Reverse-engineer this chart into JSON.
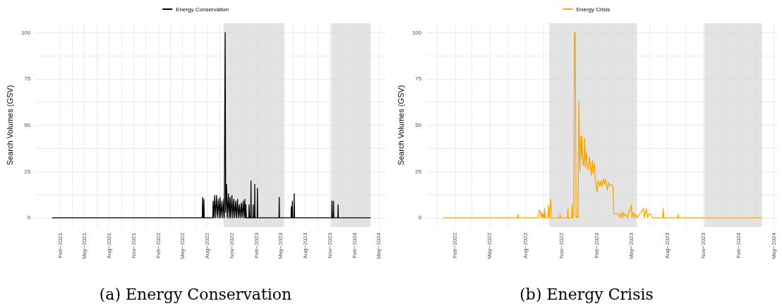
{
  "chart_data": [
    {
      "type": "line",
      "ylabel": "Search Volumes (GSV)",
      "legend": "top",
      "grid": true,
      "line_style": "solid",
      "marker": "none",
      "x": [
        "2021-01-01",
        "2022-07-14",
        "2022-07-15",
        "2022-07-17",
        "2022-07-19",
        "2022-07-20",
        "2022-07-21",
        "2022-08-22",
        "2022-08-23",
        "2022-08-26",
        "2022-08-29",
        "2022-09-01",
        "2022-09-05",
        "2022-09-08",
        "2022-09-12",
        "2022-09-15",
        "2022-09-18",
        "2022-09-21",
        "2022-09-25",
        "2022-09-28",
        "2022-10-02",
        "2022-10-04",
        "2022-10-07",
        "2022-10-09",
        "2022-10-12",
        "2022-10-15",
        "2022-10-19",
        "2022-10-22",
        "2022-10-25",
        "2022-10-28",
        "2022-11-01",
        "2022-11-04",
        "2022-11-08",
        "2022-11-11",
        "2022-11-15",
        "2022-11-18",
        "2022-11-22",
        "2022-11-25",
        "2022-11-29",
        "2022-12-02",
        "2022-12-06",
        "2022-12-09",
        "2022-12-13",
        "2022-12-16",
        "2022-12-19",
        "2022-12-21",
        "2022-12-23",
        "2022-12-25",
        "2023-01-03",
        "2023-01-04",
        "2023-01-06",
        "2023-01-10",
        "2023-01-11",
        "2023-01-12",
        "2023-01-18",
        "2023-01-19",
        "2023-01-20",
        "2023-01-24",
        "2023-01-25",
        "2023-01-26",
        "2023-02-03",
        "2023-02-04",
        "2023-02-05",
        "2023-04-25",
        "2023-04-26",
        "2023-04-27",
        "2023-06-09",
        "2023-06-10",
        "2023-06-12",
        "2023-06-14",
        "2023-06-15",
        "2023-06-20",
        "2023-06-21",
        "2023-06-22",
        "2023-11-07",
        "2023-11-08",
        "2023-11-09",
        "2023-11-13",
        "2023-11-14",
        "2023-11-15",
        "2023-11-30",
        "2023-12-01",
        "2023-12-02",
        "2024-03-31"
      ],
      "series": [
        {
          "name": "Energy Conservation",
          "color": "#000000",
          "values": [
            0,
            0,
            11,
            0,
            0,
            10,
            0,
            0,
            9,
            0,
            12,
            0,
            12,
            0,
            10,
            0,
            11,
            0,
            9,
            0,
            10,
            0,
            100,
            3,
            18,
            0,
            13,
            0,
            11,
            0,
            12,
            0,
            10,
            0,
            9,
            0,
            10,
            0,
            7,
            0,
            8,
            0,
            9,
            0,
            10,
            0,
            7,
            0,
            0,
            7,
            0,
            0,
            20,
            0,
            0,
            7,
            0,
            0,
            18,
            0,
            0,
            16,
            0,
            0,
            11,
            0,
            0,
            6,
            0,
            9,
            0,
            0,
            13,
            0,
            0,
            9,
            0,
            0,
            9,
            0,
            0,
            7,
            0,
            0
          ]
        }
      ],
      "xlim": [
        "2020-11-03",
        "2024-05-30"
      ],
      "xticks": [
        {
          "value": "2021-02-01",
          "label": "Feb−2021"
        },
        {
          "value": "2021-03-16",
          "label": null
        },
        {
          "value": "2021-05-01",
          "label": "May−2021"
        },
        {
          "value": "2021-06-16",
          "label": null
        },
        {
          "value": "2021-08-01",
          "label": "Aug−2021"
        },
        {
          "value": "2021-09-16",
          "label": null
        },
        {
          "value": "2021-11-01",
          "label": "Nov−2021"
        },
        {
          "value": "2021-12-16",
          "label": null
        },
        {
          "value": "2022-02-01",
          "label": "Feb−2022"
        },
        {
          "value": "2022-03-16",
          "label": null
        },
        {
          "value": "2022-05-01",
          "label": "May−2022"
        },
        {
          "value": "2022-06-16",
          "label": null
        },
        {
          "value": "2022-08-01",
          "label": "Aug−2022"
        },
        {
          "value": "2022-09-16",
          "label": null
        },
        {
          "value": "2022-11-01",
          "label": "Nov−2022"
        },
        {
          "value": "2022-12-16",
          "label": null
        },
        {
          "value": "2023-02-01",
          "label": "Feb−2023"
        },
        {
          "value": "2023-03-16",
          "label": null
        },
        {
          "value": "2023-05-01",
          "label": "May−2023"
        },
        {
          "value": "2023-06-16",
          "label": null
        },
        {
          "value": "2023-08-01",
          "label": "Aug−2023"
        },
        {
          "value": "2023-09-16",
          "label": null
        },
        {
          "value": "2023-11-01",
          "label": "Nov−2023"
        },
        {
          "value": "2023-12-16",
          "label": null
        },
        {
          "value": "2024-02-01",
          "label": "Feb−2024"
        },
        {
          "value": "2024-03-16",
          "label": null
        },
        {
          "value": "2024-05-01",
          "label": "May−2024"
        }
      ],
      "ylim": [
        -5,
        105
      ],
      "yticks": [
        0,
        {
          "value": 12.5,
          "label": null
        },
        25,
        {
          "value": 37.5,
          "label": null
        },
        50,
        {
          "value": 62.5,
          "label": null
        },
        75,
        {
          "value": 87.5,
          "label": null
        },
        100
      ],
      "bands": [
        {
          "axis": "x",
          "from": "2022-10-01",
          "to": "2023-05-15",
          "color": "#d9d7d8"
        },
        {
          "axis": "x",
          "from": "2023-11-05",
          "to": "2024-03-31",
          "color": "#d9d7d8"
        }
      ],
      "annotations": [
        "(a) Energy Conservation"
      ]
    },
    {
      "type": "line",
      "ylabel": "Search Volumes (GSV)",
      "legend": "top",
      "grid": true,
      "line_style": "solid",
      "marker": "none",
      "x": [
        "2022-01-01",
        "2022-07-12",
        "2022-07-13",
        "2022-07-14",
        "2022-09-03",
        "2022-09-05",
        "2022-09-07",
        "2022-09-10",
        "2022-09-12",
        "2022-09-15",
        "2022-09-16",
        "2022-09-18",
        "2022-09-19",
        "2022-09-21",
        "2022-09-28",
        "2022-09-29",
        "2022-09-30",
        "2022-10-05",
        "2022-10-06",
        "2022-10-28",
        "2022-10-29",
        "2022-10-30",
        "2022-11-17",
        "2022-11-18",
        "2022-11-19",
        "2022-11-28",
        "2022-11-29",
        "2022-11-30",
        "2022-12-01",
        "2022-12-03",
        "2022-12-05",
        "2022-12-07",
        "2022-12-09",
        "2022-12-12",
        "2022-12-14",
        "2022-12-16",
        "2022-12-19",
        "2022-12-21",
        "2022-12-23",
        "2022-12-24",
        "2022-12-27",
        "2022-12-29",
        "2022-12-31",
        "2023-01-02",
        "2023-01-05",
        "2023-01-07",
        "2023-01-10",
        "2023-01-12",
        "2023-01-15",
        "2023-01-17",
        "2023-01-20",
        "2023-01-22",
        "2023-01-25",
        "2023-01-27",
        "2023-02-01",
        "2023-02-04",
        "2023-02-08",
        "2023-02-11",
        "2023-02-14",
        "2023-02-17",
        "2023-02-20",
        "2023-02-23",
        "2023-02-27",
        "2023-03-02",
        "2023-03-05",
        "2023-03-09",
        "2023-03-14",
        "2023-03-16",
        "2023-03-19",
        "2023-03-28",
        "2023-04-01",
        "2023-04-04",
        "2023-04-07",
        "2023-04-10",
        "2023-04-13",
        "2023-04-17",
        "2023-04-20",
        "2023-04-30",
        "2023-05-02",
        "2023-05-06",
        "2023-05-09",
        "2023-05-12",
        "2023-05-15",
        "2023-06-01",
        "2023-06-03",
        "2023-06-08",
        "2023-06-11",
        "2023-06-14",
        "2023-06-19",
        "2023-06-22",
        "2023-06-24",
        "2023-07-20",
        "2023-07-21",
        "2023-07-23",
        "2023-08-28",
        "2023-08-29",
        "2023-08-30",
        "2024-03-31"
      ],
      "series": [
        {
          "name": "Energy Crisis",
          "color": "#ffa500",
          "values": [
            0,
            0,
            2,
            0,
            0,
            4,
            4,
            0,
            3,
            0,
            2,
            0,
            5,
            0,
            0,
            7,
            0,
            10,
            0,
            0,
            2,
            0,
            0,
            5,
            0,
            0,
            7,
            0,
            0,
            1,
            100,
            100,
            0,
            1,
            0,
            63,
            25,
            44,
            32,
            44,
            30,
            28,
            43,
            27,
            36,
            28,
            26,
            33,
            28,
            23,
            31,
            24,
            30,
            22,
            14,
            20,
            17,
            20,
            17,
            21,
            18,
            21,
            15,
            19,
            17,
            18,
            17,
            3,
            2,
            2,
            0,
            3,
            0,
            3,
            1,
            2,
            0,
            7,
            0,
            3,
            0,
            2,
            0,
            5,
            0,
            5,
            0,
            2,
            2,
            1,
            0,
            0,
            5,
            0,
            0,
            2,
            0,
            0
          ]
        }
      ],
      "xlim": [
        "2021-11-21",
        "2024-05-11"
      ],
      "xticks": [
        {
          "value": "2021-12-16",
          "label": null
        },
        {
          "value": "2022-02-01",
          "label": "Feb−2022"
        },
        {
          "value": "2022-03-16",
          "label": null
        },
        {
          "value": "2022-05-01",
          "label": "May−2022"
        },
        {
          "value": "2022-06-16",
          "label": null
        },
        {
          "value": "2022-08-01",
          "label": "Aug−2022"
        },
        {
          "value": "2022-09-16",
          "label": null
        },
        {
          "value": "2022-11-01",
          "label": "Nov−2022"
        },
        {
          "value": "2022-12-16",
          "label": null
        },
        {
          "value": "2023-02-01",
          "label": "Feb−2023"
        },
        {
          "value": "2023-03-16",
          "label": null
        },
        {
          "value": "2023-05-01",
          "label": "May−2023"
        },
        {
          "value": "2023-06-16",
          "label": null
        },
        {
          "value": "2023-08-01",
          "label": "Aug−2023"
        },
        {
          "value": "2023-09-16",
          "label": null
        },
        {
          "value": "2023-11-01",
          "label": "Nov−2023"
        },
        {
          "value": "2023-12-16",
          "label": null
        },
        {
          "value": "2024-02-01",
          "label": "Feb−2024"
        },
        {
          "value": "2024-03-16",
          "label": null
        },
        {
          "value": "2024-05-01",
          "label": "May−2024"
        }
      ],
      "ylim": [
        -5,
        105
      ],
      "yticks": [
        0,
        {
          "value": 12.5,
          "label": null
        },
        25,
        {
          "value": 37.5,
          "label": null
        },
        50,
        {
          "value": 62.5,
          "label": null
        },
        75,
        {
          "value": 87.5,
          "label": null
        },
        100
      ],
      "bands": [
        {
          "axis": "x",
          "from": "2022-10-01",
          "to": "2023-05-15",
          "color": "#d9d7d8"
        },
        {
          "axis": "x",
          "from": "2023-11-04",
          "to": "2024-03-31",
          "color": "#d9d7d8"
        }
      ],
      "annotations": [
        "(b) Energy Crisis"
      ]
    }
  ]
}
